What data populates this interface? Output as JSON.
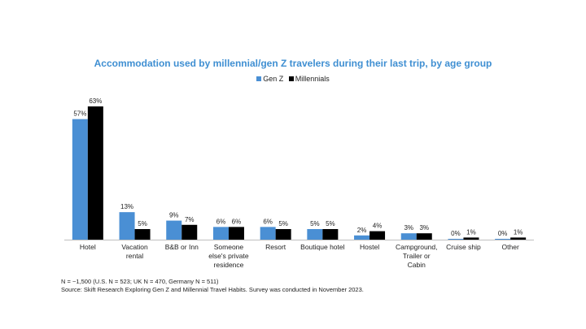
{
  "chart_data": {
    "type": "bar",
    "title": "Accommodation used by millennial/gen Z travelers during their last trip, by age group",
    "categories": [
      "Hotel",
      "Vacation rental",
      "B&B or Inn",
      "Someone else's private residence",
      "Resort",
      "Boutique hotel",
      "Hostel",
      "Campground, Trailer or Cabin",
      "Cruise ship",
      "Other"
    ],
    "category_lines": [
      [
        "Hotel"
      ],
      [
        "Vacation",
        "rental"
      ],
      [
        "B&B or Inn"
      ],
      [
        "Someone",
        "else's private",
        "residence"
      ],
      [
        "Resort"
      ],
      [
        "Boutique hotel"
      ],
      [
        "Hostel"
      ],
      [
        "Campground,",
        "Trailer or",
        "Cabin"
      ],
      [
        "Cruise ship"
      ],
      [
        "Other"
      ]
    ],
    "series": [
      {
        "name": "Gen Z",
        "color": "#4a8fd4",
        "values": [
          57,
          13,
          9,
          6,
          6,
          5,
          2,
          3,
          0,
          0
        ]
      },
      {
        "name": "Millennials",
        "color": "#000000",
        "values": [
          63,
          5,
          7,
          6,
          5,
          5,
          4,
          3,
          1,
          1
        ]
      }
    ],
    "value_suffix": "%",
    "ylim": [
      0,
      63
    ],
    "xlabel": "",
    "ylabel": "",
    "legend_position": "top-center",
    "grid": false
  },
  "footnote": {
    "line1": "N = ~1,500 (U.S.  N = 523; UK N = 470, Germany N = 511)",
    "line2": "Source: Skift Research Exploring Gen Z and Millennial  Travel Habits. Survey was conducted in November 2023."
  }
}
